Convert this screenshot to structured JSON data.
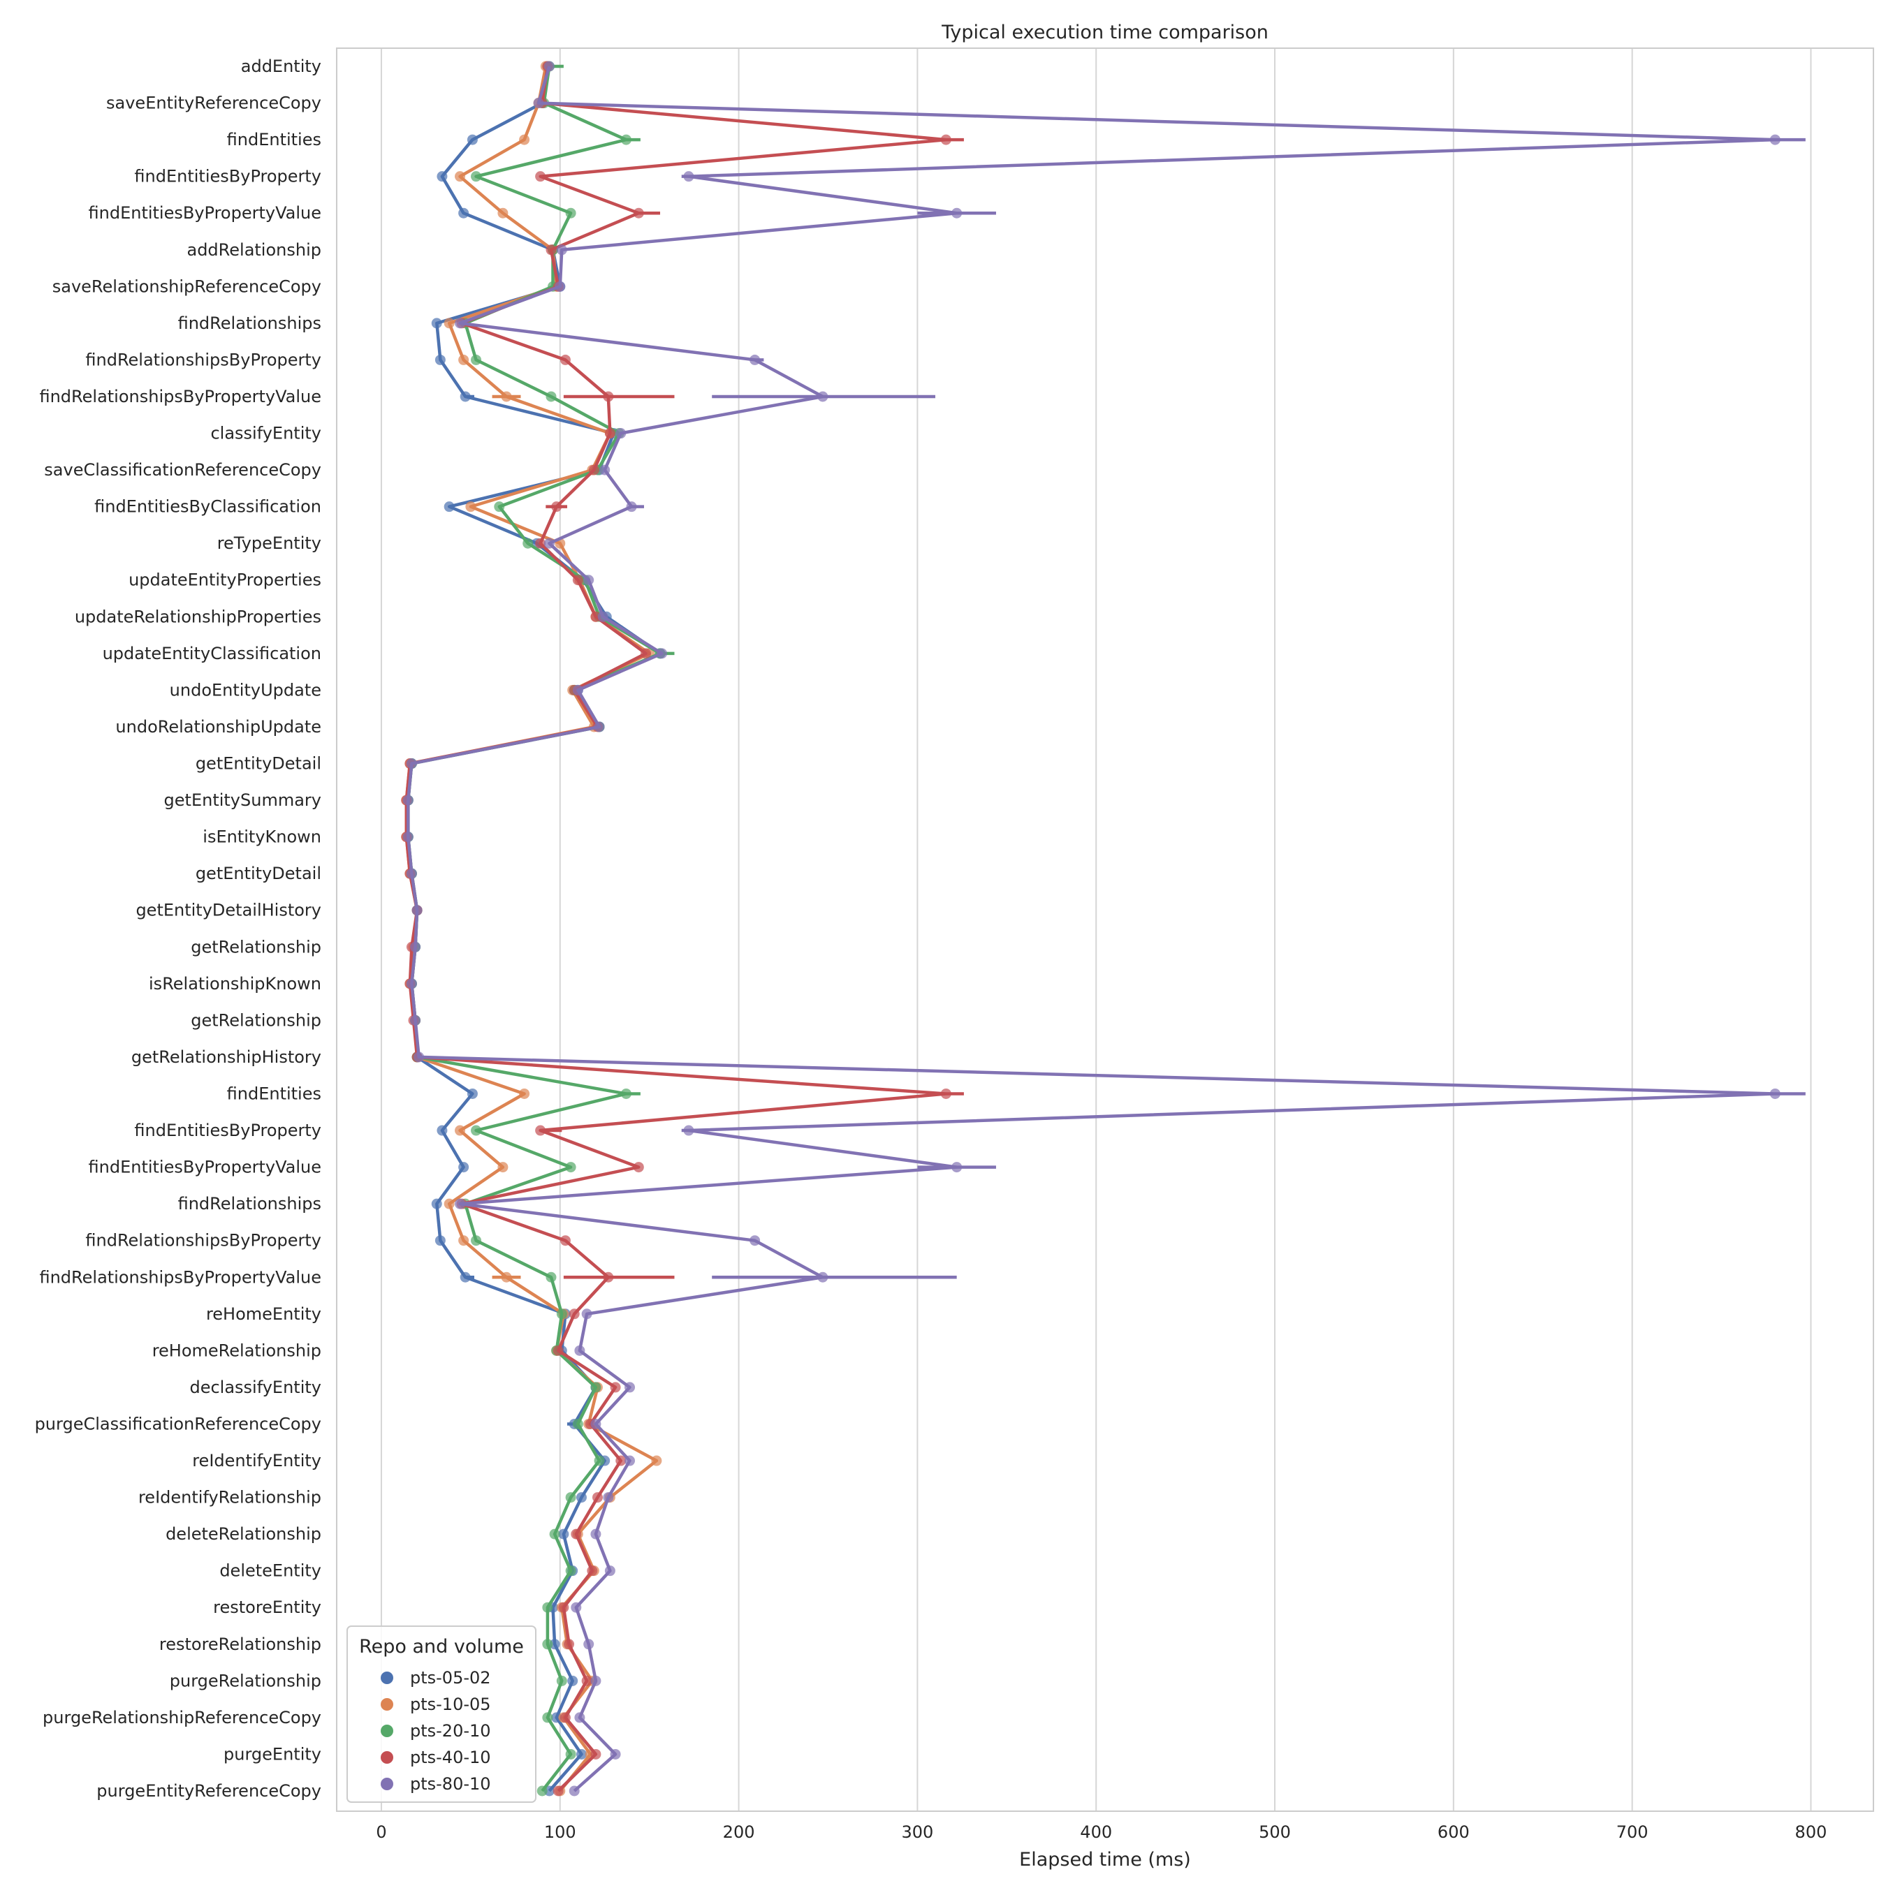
{
  "chart_data": {
    "type": "line",
    "title": "Typical execution time comparison",
    "xlabel": "Elapsed time (ms)",
    "ylabel": "",
    "xlim": [
      -25,
      835
    ],
    "xticks": [
      0,
      100,
      200,
      300,
      400,
      500,
      600,
      700,
      800
    ],
    "grid": "vertical",
    "legend": {
      "title": "Repo and volume",
      "placement": "lower-left"
    },
    "categories": [
      "addEntity",
      "saveEntityReferenceCopy",
      "findEntities",
      "findEntitiesByProperty",
      "findEntitiesByPropertyValue",
      "addRelationship",
      "saveRelationshipReferenceCopy",
      "findRelationships",
      "findRelationshipsByProperty",
      "findRelationshipsByPropertyValue",
      "classifyEntity",
      "saveClassificationReferenceCopy",
      "findEntitiesByClassification",
      "reTypeEntity",
      "updateEntityProperties",
      "updateRelationshipProperties",
      "updateEntityClassification",
      "undoEntityUpdate",
      "undoRelationshipUpdate",
      "getEntityDetail",
      "getEntitySummary",
      "isEntityKnown",
      "getEntityDetail",
      "getEntityDetailHistory",
      "getRelationship",
      "isRelationshipKnown",
      "getRelationship",
      "getRelationshipHistory",
      "findEntities",
      "findEntitiesByProperty",
      "findEntitiesByPropertyValue",
      "findRelationships",
      "findRelationshipsByProperty",
      "findRelationshipsByPropertyValue",
      "reHomeEntity",
      "reHomeRelationship",
      "declassifyEntity",
      "purgeClassificationReferenceCopy",
      "reIdentifyEntity",
      "reIdentifyRelationship",
      "deleteRelationship",
      "deleteEntity",
      "restoreEntity",
      "restoreRelationship",
      "purgeRelationship",
      "purgeRelationshipReferenceCopy",
      "purgeEntity",
      "purgeEntityReferenceCopy"
    ],
    "series": [
      {
        "name": "pts-05-02",
        "color": "#4c72b0",
        "values": [
          93,
          90,
          51,
          34,
          46,
          96,
          100,
          31,
          33,
          47,
          130,
          122,
          38,
          87,
          113,
          126,
          156,
          110,
          122,
          17,
          15,
          15,
          17,
          20,
          19,
          17,
          19,
          20,
          51,
          34,
          46,
          31,
          33,
          47,
          103,
          101,
          120,
          108,
          125,
          112,
          102,
          107,
          96,
          97,
          107,
          98,
          112,
          94
        ],
        "errors": [
          [
            0,
            0
          ],
          [
            0,
            0
          ],
          [
            0,
            0
          ],
          [
            0,
            0
          ],
          [
            0,
            0
          ],
          [
            0,
            0
          ],
          [
            0,
            0
          ],
          [
            0,
            0
          ],
          [
            0,
            0
          ],
          [
            0,
            5
          ],
          [
            0,
            0
          ],
          [
            0,
            0
          ],
          [
            0,
            0
          ],
          [
            0,
            0
          ],
          [
            0,
            0
          ],
          [
            0,
            0
          ],
          [
            0,
            0
          ],
          [
            0,
            0
          ],
          [
            0,
            0
          ],
          [
            0,
            0
          ],
          [
            0,
            0
          ],
          [
            0,
            0
          ],
          [
            0,
            0
          ],
          [
            0,
            0
          ],
          [
            0,
            0
          ],
          [
            0,
            0
          ],
          [
            0,
            0
          ],
          [
            0,
            0
          ],
          [
            0,
            0
          ],
          [
            0,
            0
          ],
          [
            0,
            0
          ],
          [
            0,
            0
          ],
          [
            0,
            0
          ],
          [
            0,
            5
          ],
          [
            0,
            0
          ],
          [
            0,
            0
          ],
          [
            0,
            0
          ],
          [
            4,
            2
          ],
          [
            0,
            0
          ],
          [
            0,
            0
          ],
          [
            0,
            0
          ],
          [
            0,
            0
          ],
          [
            0,
            0
          ],
          [
            0,
            0
          ],
          [
            0,
            0
          ],
          [
            0,
            0
          ],
          [
            0,
            0
          ],
          [
            0,
            0
          ]
        ]
      },
      {
        "name": "pts-10-05",
        "color": "#dd8452",
        "values": [
          92,
          88,
          80,
          44,
          68,
          96,
          98,
          38,
          46,
          70,
          128,
          118,
          50,
          100,
          111,
          120,
          150,
          107,
          119,
          16,
          14,
          14,
          16,
          20,
          18,
          16,
          19,
          20,
          80,
          44,
          68,
          38,
          46,
          70,
          102,
          98,
          121,
          116,
          154,
          128,
          110,
          119,
          101,
          104,
          118,
          102,
          117,
          100
        ],
        "errors": [
          [
            0,
            0
          ],
          [
            0,
            0
          ],
          [
            0,
            0
          ],
          [
            0,
            0
          ],
          [
            0,
            0
          ],
          [
            0,
            0
          ],
          [
            0,
            0
          ],
          [
            0,
            0
          ],
          [
            0,
            0
          ],
          [
            8,
            8
          ],
          [
            0,
            0
          ],
          [
            0,
            0
          ],
          [
            0,
            0
          ],
          [
            0,
            0
          ],
          [
            0,
            0
          ],
          [
            0,
            0
          ],
          [
            0,
            0
          ],
          [
            0,
            0
          ],
          [
            0,
            0
          ],
          [
            0,
            0
          ],
          [
            0,
            0
          ],
          [
            0,
            0
          ],
          [
            0,
            0
          ],
          [
            0,
            0
          ],
          [
            0,
            0
          ],
          [
            0,
            0
          ],
          [
            0,
            0
          ],
          [
            0,
            0
          ],
          [
            0,
            0
          ],
          [
            0,
            0
          ],
          [
            0,
            0
          ],
          [
            0,
            0
          ],
          [
            0,
            0
          ],
          [
            8,
            8
          ],
          [
            0,
            0
          ],
          [
            0,
            0
          ],
          [
            0,
            0
          ],
          [
            0,
            0
          ],
          [
            0,
            0
          ],
          [
            0,
            0
          ],
          [
            0,
            0
          ],
          [
            0,
            0
          ],
          [
            0,
            0
          ],
          [
            0,
            0
          ],
          [
            0,
            0
          ],
          [
            0,
            0
          ],
          [
            0,
            0
          ],
          [
            0,
            0
          ]
        ]
      },
      {
        "name": "pts-20-10",
        "color": "#55a868",
        "values": [
          94,
          91,
          137,
          53,
          106,
          96,
          96,
          47,
          53,
          95,
          133,
          121,
          66,
          82,
          114,
          122,
          156,
          108,
          122,
          17,
          15,
          15,
          17,
          20,
          19,
          17,
          19,
          20,
          137,
          53,
          106,
          47,
          53,
          95,
          101,
          98,
          120,
          110,
          122,
          106,
          97,
          106,
          93,
          93,
          101,
          93,
          106,
          90
        ],
        "errors": [
          [
            0,
            8
          ],
          [
            0,
            0
          ],
          [
            0,
            8
          ],
          [
            0,
            0
          ],
          [
            0,
            0
          ],
          [
            0,
            0
          ],
          [
            0,
            0
          ],
          [
            0,
            0
          ],
          [
            0,
            0
          ],
          [
            0,
            0
          ],
          [
            0,
            0
          ],
          [
            0,
            0
          ],
          [
            0,
            0
          ],
          [
            0,
            0
          ],
          [
            0,
            0
          ],
          [
            0,
            0
          ],
          [
            0,
            8
          ],
          [
            0,
            0
          ],
          [
            0,
            0
          ],
          [
            0,
            0
          ],
          [
            0,
            0
          ],
          [
            0,
            0
          ],
          [
            0,
            0
          ],
          [
            0,
            0
          ],
          [
            0,
            0
          ],
          [
            0,
            0
          ],
          [
            0,
            0
          ],
          [
            0,
            0
          ],
          [
            0,
            8
          ],
          [
            0,
            0
          ],
          [
            0,
            0
          ],
          [
            0,
            0
          ],
          [
            0,
            0
          ],
          [
            0,
            0
          ],
          [
            0,
            0
          ],
          [
            0,
            0
          ],
          [
            0,
            0
          ],
          [
            0,
            0
          ],
          [
            0,
            0
          ],
          [
            0,
            0
          ],
          [
            0,
            0
          ],
          [
            0,
            0
          ],
          [
            0,
            0
          ],
          [
            0,
            0
          ],
          [
            0,
            0
          ],
          [
            0,
            0
          ],
          [
            0,
            0
          ],
          [
            0,
            0
          ]
        ]
      },
      {
        "name": "pts-40-10",
        "color": "#c44e52",
        "values": [
          93,
          90,
          316,
          89,
          144,
          95,
          99,
          45,
          103,
          127,
          128,
          119,
          98,
          89,
          110,
          120,
          148,
          108,
          121,
          16,
          14,
          14,
          16,
          20,
          17,
          16,
          18,
          20,
          316,
          89,
          144,
          45,
          103,
          127,
          108,
          99,
          131,
          117,
          134,
          121,
          109,
          118,
          102,
          105,
          115,
          103,
          120,
          99
        ],
        "errors": [
          [
            0,
            0
          ],
          [
            0,
            0
          ],
          [
            0,
            10
          ],
          [
            0,
            0
          ],
          [
            0,
            12
          ],
          [
            0,
            0
          ],
          [
            0,
            0
          ],
          [
            0,
            0
          ],
          [
            0,
            0
          ],
          [
            25,
            37
          ],
          [
            0,
            0
          ],
          [
            0,
            0
          ],
          [
            6,
            6
          ],
          [
            0,
            0
          ],
          [
            0,
            0
          ],
          [
            0,
            0
          ],
          [
            0,
            0
          ],
          [
            0,
            0
          ],
          [
            0,
            0
          ],
          [
            0,
            0
          ],
          [
            0,
            0
          ],
          [
            0,
            0
          ],
          [
            0,
            0
          ],
          [
            0,
            0
          ],
          [
            0,
            0
          ],
          [
            0,
            0
          ],
          [
            0,
            0
          ],
          [
            0,
            0
          ],
          [
            0,
            10
          ],
          [
            0,
            12
          ],
          [
            0,
            0
          ],
          [
            0,
            0
          ],
          [
            0,
            0
          ],
          [
            25,
            37
          ],
          [
            0,
            0
          ],
          [
            0,
            0
          ],
          [
            0,
            0
          ],
          [
            0,
            0
          ],
          [
            0,
            0
          ],
          [
            0,
            0
          ],
          [
            0,
            0
          ],
          [
            0,
            0
          ],
          [
            0,
            0
          ],
          [
            0,
            0
          ],
          [
            0,
            0
          ],
          [
            0,
            0
          ],
          [
            0,
            0
          ],
          [
            0,
            0
          ]
        ]
      },
      {
        "name": "pts-80-10",
        "color": "#8172b3",
        "values": [
          94,
          88,
          780,
          172,
          322,
          101,
          100,
          44,
          209,
          247,
          134,
          125,
          140,
          94,
          116,
          124,
          157,
          110,
          122,
          17,
          15,
          15,
          17,
          20,
          19,
          17,
          19,
          21,
          780,
          172,
          322,
          44,
          209,
          247,
          115,
          111,
          139,
          120,
          139,
          127,
          120,
          128,
          109,
          116,
          120,
          111,
          131,
          108
        ],
        "errors": [
          [
            0,
            0
          ],
          [
            0,
            0
          ],
          [
            0,
            17
          ],
          [
            4,
            4
          ],
          [
            22,
            22
          ],
          [
            0,
            0
          ],
          [
            0,
            0
          ],
          [
            0,
            0
          ],
          [
            0,
            5
          ],
          [
            62,
            63
          ],
          [
            0,
            0
          ],
          [
            0,
            0
          ],
          [
            0,
            7
          ],
          [
            0,
            0
          ],
          [
            0,
            0
          ],
          [
            0,
            0
          ],
          [
            0,
            0
          ],
          [
            0,
            0
          ],
          [
            0,
            0
          ],
          [
            0,
            0
          ],
          [
            0,
            0
          ],
          [
            0,
            0
          ],
          [
            0,
            0
          ],
          [
            0,
            0
          ],
          [
            0,
            0
          ],
          [
            0,
            0
          ],
          [
            0,
            0
          ],
          [
            0,
            0
          ],
          [
            0,
            17
          ],
          [
            4,
            4
          ],
          [
            22,
            22
          ],
          [
            0,
            0
          ],
          [
            0,
            0
          ],
          [
            62,
            75
          ],
          [
            0,
            0
          ],
          [
            0,
            0
          ],
          [
            0,
            0
          ],
          [
            0,
            0
          ],
          [
            0,
            0
          ],
          [
            0,
            0
          ],
          [
            0,
            0
          ],
          [
            0,
            0
          ],
          [
            0,
            0
          ],
          [
            0,
            0
          ],
          [
            0,
            0
          ],
          [
            0,
            0
          ],
          [
            0,
            0
          ],
          [
            0,
            0
          ]
        ]
      }
    ]
  }
}
